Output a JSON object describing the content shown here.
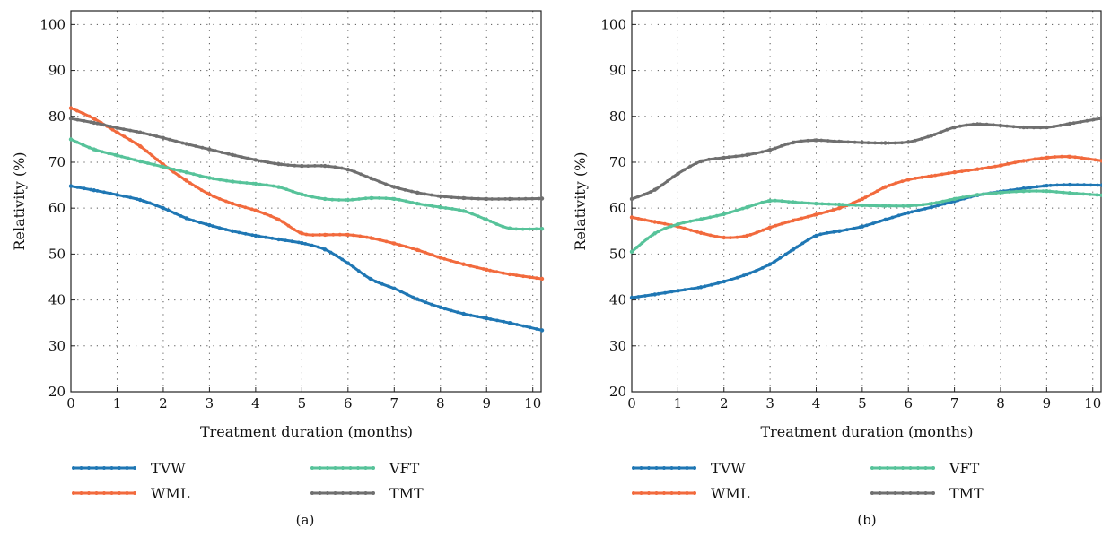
{
  "colors": {
    "TVW": "#1f77b4",
    "WML": "#f26a3d",
    "VFT": "#57c39a",
    "TMT": "#6f6f6f"
  },
  "chart_data": [
    {
      "type": "line",
      "panel_label": "(a)",
      "xlabel": "Treatment duration (months)",
      "ylabel": "Relativity (%)",
      "xlim": [
        0,
        10.2
      ],
      "ylim": [
        20,
        103
      ],
      "xticks": [
        0,
        1,
        2,
        3,
        4,
        5,
        6,
        7,
        8,
        9,
        10
      ],
      "yticks": [
        20,
        30,
        40,
        50,
        60,
        70,
        80,
        90,
        100
      ],
      "grid": true,
      "legend_position": "bottom",
      "series": [
        {
          "name": "TVW",
          "points": [
            [
              0,
              64.8
            ],
            [
              0.5,
              63.9
            ],
            [
              1,
              62.9
            ],
            [
              1.5,
              61.8
            ],
            [
              2,
              60.0
            ],
            [
              2.5,
              57.8
            ],
            [
              3,
              56.3
            ],
            [
              3.5,
              55.0
            ],
            [
              4,
              54.0
            ],
            [
              4.5,
              53.2
            ],
            [
              5,
              52.4
            ],
            [
              5.5,
              51.0
            ],
            [
              6,
              48.0
            ],
            [
              6.5,
              44.5
            ],
            [
              7,
              42.5
            ],
            [
              7.5,
              40.2
            ],
            [
              8,
              38.4
            ],
            [
              8.5,
              37.0
            ],
            [
              9,
              36.0
            ],
            [
              9.5,
              35.0
            ],
            [
              10.2,
              33.4
            ]
          ]
        },
        {
          "name": "WML",
          "points": [
            [
              0,
              81.8
            ],
            [
              0.5,
              79.5
            ],
            [
              1,
              76.5
            ],
            [
              1.5,
              73.5
            ],
            [
              2,
              69.5
            ],
            [
              2.5,
              66.0
            ],
            [
              3,
              63.0
            ],
            [
              3.5,
              61.0
            ],
            [
              4,
              59.5
            ],
            [
              4.5,
              57.5
            ],
            [
              5,
              54.5
            ],
            [
              5.5,
              54.2
            ],
            [
              6,
              54.2
            ],
            [
              6.5,
              53.5
            ],
            [
              7,
              52.3
            ],
            [
              7.5,
              50.9
            ],
            [
              8,
              49.2
            ],
            [
              8.5,
              47.8
            ],
            [
              9,
              46.6
            ],
            [
              9.5,
              45.6
            ],
            [
              10.2,
              44.6
            ]
          ]
        },
        {
          "name": "VFT",
          "points": [
            [
              0,
              75.0
            ],
            [
              0.5,
              72.8
            ],
            [
              1,
              71.5
            ],
            [
              1.5,
              70.2
            ],
            [
              2,
              69.0
            ],
            [
              2.5,
              67.8
            ],
            [
              3,
              66.6
            ],
            [
              3.5,
              65.8
            ],
            [
              4,
              65.3
            ],
            [
              4.5,
              64.6
            ],
            [
              5,
              63.0
            ],
            [
              5.5,
              62.0
            ],
            [
              6,
              61.8
            ],
            [
              6.5,
              62.2
            ],
            [
              7,
              62.0
            ],
            [
              7.5,
              61.0
            ],
            [
              8,
              60.2
            ],
            [
              8.5,
              59.4
            ],
            [
              9,
              57.5
            ],
            [
              9.5,
              55.6
            ],
            [
              10.2,
              55.5
            ]
          ]
        },
        {
          "name": "TMT",
          "points": [
            [
              0,
              79.5
            ],
            [
              0.5,
              78.6
            ],
            [
              1,
              77.5
            ],
            [
              1.5,
              76.5
            ],
            [
              2,
              75.3
            ],
            [
              2.5,
              74.0
            ],
            [
              3,
              72.8
            ],
            [
              3.5,
              71.6
            ],
            [
              4,
              70.5
            ],
            [
              4.5,
              69.6
            ],
            [
              5,
              69.2
            ],
            [
              5.5,
              69.2
            ],
            [
              6,
              68.4
            ],
            [
              6.5,
              66.5
            ],
            [
              7,
              64.6
            ],
            [
              7.5,
              63.4
            ],
            [
              8,
              62.6
            ],
            [
              8.5,
              62.2
            ],
            [
              9,
              62.0
            ],
            [
              9.5,
              62.0
            ],
            [
              10.2,
              62.1
            ]
          ]
        }
      ]
    },
    {
      "type": "line",
      "panel_label": "(b)",
      "xlabel": "Treatment duration (months)",
      "ylabel": "Relativity (%)",
      "xlim": [
        0,
        10.2
      ],
      "ylim": [
        20,
        103
      ],
      "xticks": [
        0,
        1,
        2,
        3,
        4,
        5,
        6,
        7,
        8,
        9,
        10
      ],
      "yticks": [
        20,
        30,
        40,
        50,
        60,
        70,
        80,
        90,
        100
      ],
      "grid": true,
      "legend_position": "bottom",
      "series": [
        {
          "name": "TVW",
          "points": [
            [
              0,
              40.5
            ],
            [
              0.5,
              41.2
            ],
            [
              1,
              42.0
            ],
            [
              1.5,
              42.8
            ],
            [
              2,
              44.0
            ],
            [
              2.5,
              45.6
            ],
            [
              3,
              47.8
            ],
            [
              3.5,
              51.0
            ],
            [
              4,
              54.0
            ],
            [
              4.5,
              55.0
            ],
            [
              5,
              56.0
            ],
            [
              5.5,
              57.5
            ],
            [
              6,
              59.0
            ],
            [
              6.5,
              60.2
            ],
            [
              7,
              61.5
            ],
            [
              7.5,
              62.8
            ],
            [
              8,
              63.6
            ],
            [
              8.5,
              64.3
            ],
            [
              9,
              64.9
            ],
            [
              9.5,
              65.1
            ],
            [
              10.2,
              65.0
            ]
          ]
        },
        {
          "name": "WML",
          "points": [
            [
              0,
              58.0
            ],
            [
              0.5,
              57.0
            ],
            [
              1,
              56.0
            ],
            [
              1.5,
              54.6
            ],
            [
              2,
              53.6
            ],
            [
              2.5,
              54.0
            ],
            [
              3,
              55.8
            ],
            [
              3.5,
              57.3
            ],
            [
              4,
              58.6
            ],
            [
              4.5,
              60.0
            ],
            [
              5,
              62.0
            ],
            [
              5.5,
              64.6
            ],
            [
              6,
              66.2
            ],
            [
              6.5,
              67.0
            ],
            [
              7,
              67.8
            ],
            [
              7.5,
              68.5
            ],
            [
              8,
              69.3
            ],
            [
              8.5,
              70.3
            ],
            [
              9,
              71.0
            ],
            [
              9.5,
              71.2
            ],
            [
              10.2,
              70.3
            ]
          ]
        },
        {
          "name": "VFT",
          "points": [
            [
              0,
              50.5
            ],
            [
              0.5,
              54.5
            ],
            [
              1,
              56.5
            ],
            [
              1.5,
              57.6
            ],
            [
              2,
              58.7
            ],
            [
              2.5,
              60.2
            ],
            [
              3,
              61.6
            ],
            [
              3.5,
              61.3
            ],
            [
              4,
              61.0
            ],
            [
              4.5,
              60.8
            ],
            [
              5,
              60.6
            ],
            [
              5.5,
              60.5
            ],
            [
              6,
              60.5
            ],
            [
              6.5,
              61.0
            ],
            [
              7,
              62.0
            ],
            [
              7.5,
              62.9
            ],
            [
              8,
              63.4
            ],
            [
              8.5,
              63.7
            ],
            [
              9,
              63.7
            ],
            [
              9.5,
              63.3
            ],
            [
              10.2,
              62.8
            ]
          ]
        },
        {
          "name": "TMT",
          "points": [
            [
              0,
              62.0
            ],
            [
              0.5,
              64.0
            ],
            [
              1,
              67.5
            ],
            [
              1.5,
              70.2
            ],
            [
              2,
              71.0
            ],
            [
              2.5,
              71.6
            ],
            [
              3,
              72.7
            ],
            [
              3.5,
              74.3
            ],
            [
              4,
              74.8
            ],
            [
              4.5,
              74.5
            ],
            [
              5,
              74.3
            ],
            [
              5.5,
              74.2
            ],
            [
              6,
              74.4
            ],
            [
              6.5,
              75.8
            ],
            [
              7,
              77.6
            ],
            [
              7.5,
              78.3
            ],
            [
              8,
              78.0
            ],
            [
              8.5,
              77.6
            ],
            [
              9,
              77.6
            ],
            [
              9.5,
              78.4
            ],
            [
              10.2,
              79.6
            ]
          ]
        }
      ]
    }
  ]
}
